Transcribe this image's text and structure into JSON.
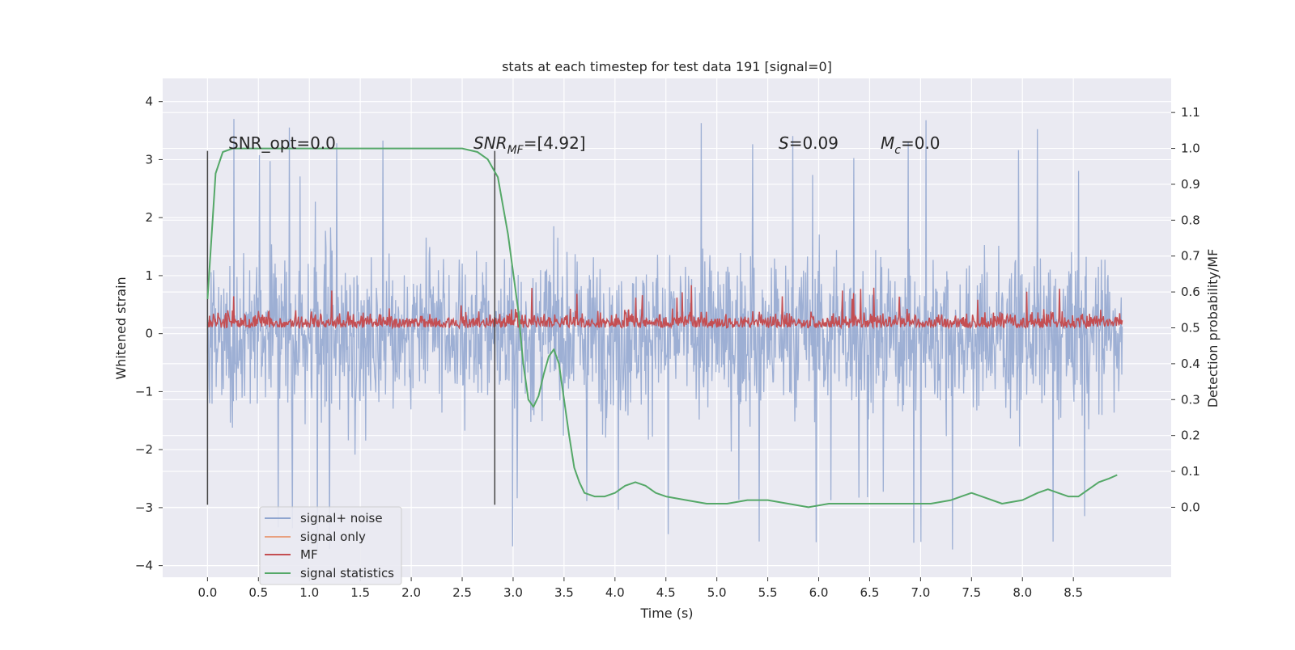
{
  "chart_data": {
    "type": "line",
    "title": "stats at each timestep for test data 191 [signal=0]",
    "xlabel": "Time (s)",
    "ylabel_left": "Whitened strain",
    "ylabel_right": "Detection probability/MF",
    "xlim": [
      -0.44,
      9.46
    ],
    "ylim_left": [
      -4.2,
      4.4
    ],
    "ylim_right": [
      -0.195,
      1.195
    ],
    "x_ticks": [
      "0.0",
      "0.5",
      "1.0",
      "1.5",
      "2.0",
      "2.5",
      "3.0",
      "3.5",
      "4.0",
      "4.5",
      "5.0",
      "5.5",
      "6.0",
      "6.5",
      "7.0",
      "7.5",
      "8.0",
      "8.5"
    ],
    "y_left_ticks": [
      "4",
      "3",
      "2",
      "1",
      "0",
      "−1",
      "−2",
      "−3",
      "−4"
    ],
    "y_right_ticks": [
      "1.1",
      "1.0",
      "0.9",
      "0.8",
      "0.7",
      "0.6",
      "0.5",
      "0.4",
      "0.3",
      "0.2",
      "0.1",
      "0.0"
    ],
    "grid": true,
    "legend_position": "lower-left",
    "annotations": {
      "snr_opt": "SNR_opt=0.0",
      "snr_mf_main": "SNR",
      "snr_mf_sub": "MF",
      "snr_mf_value": "=[4.92]",
      "s_symbol": "S",
      "s_value": "=0.09",
      "mc_symbol": "M",
      "mc_sub": "c",
      "mc_value": "=0.0"
    },
    "vlines": [
      {
        "x": 0.0,
        "y_from": -2.95,
        "y_to": 3.15
      },
      {
        "x": 2.82,
        "y_from": -2.95,
        "y_to": 3.15
      }
    ],
    "series": [
      {
        "name": "signal+ noise",
        "color": "#8fa5cf",
        "axis": "left",
        "x_range": [
          0.0,
          8.98
        ],
        "envelope": {
          "core_low": -1.5,
          "core_high": 1.4,
          "peak_high": 4.0,
          "peak_low": -3.8
        }
      },
      {
        "name": "signal only",
        "color": "#e8a07f",
        "axis": "left",
        "x": [],
        "y": []
      },
      {
        "name": "MF",
        "color": "#c44e52",
        "axis": "right",
        "x_range": [
          0.0,
          8.98
        ],
        "baseline": 0.5,
        "range": [
          0.495,
          0.62
        ]
      },
      {
        "name": "signal statistics",
        "color": "#55a868",
        "axis": "right",
        "x": [
          0.0,
          0.08,
          0.15,
          0.25,
          0.5,
          1.0,
          1.5,
          2.0,
          2.5,
          2.65,
          2.75,
          2.85,
          2.95,
          3.05,
          3.1,
          3.15,
          3.2,
          3.25,
          3.3,
          3.35,
          3.4,
          3.45,
          3.5,
          3.55,
          3.6,
          3.65,
          3.7,
          3.8,
          3.9,
          4.0,
          4.1,
          4.2,
          4.3,
          4.4,
          4.5,
          4.7,
          4.9,
          5.1,
          5.3,
          5.5,
          5.7,
          5.9,
          6.1,
          6.3,
          6.5,
          6.8,
          7.1,
          7.3,
          7.4,
          7.5,
          7.6,
          7.8,
          8.0,
          8.15,
          8.25,
          8.35,
          8.45,
          8.55,
          8.65,
          8.75,
          8.85,
          8.93
        ],
        "y": [
          0.58,
          0.93,
          0.99,
          1.0,
          1.0,
          1.0,
          1.0,
          1.0,
          1.0,
          0.99,
          0.97,
          0.92,
          0.76,
          0.55,
          0.4,
          0.3,
          0.28,
          0.31,
          0.37,
          0.42,
          0.44,
          0.4,
          0.3,
          0.2,
          0.11,
          0.07,
          0.04,
          0.03,
          0.03,
          0.04,
          0.06,
          0.07,
          0.06,
          0.04,
          0.03,
          0.02,
          0.01,
          0.01,
          0.02,
          0.02,
          0.01,
          0.0,
          0.01,
          0.01,
          0.01,
          0.01,
          0.01,
          0.02,
          0.03,
          0.04,
          0.03,
          0.01,
          0.02,
          0.04,
          0.05,
          0.04,
          0.03,
          0.03,
          0.05,
          0.07,
          0.08,
          0.09
        ]
      }
    ]
  }
}
